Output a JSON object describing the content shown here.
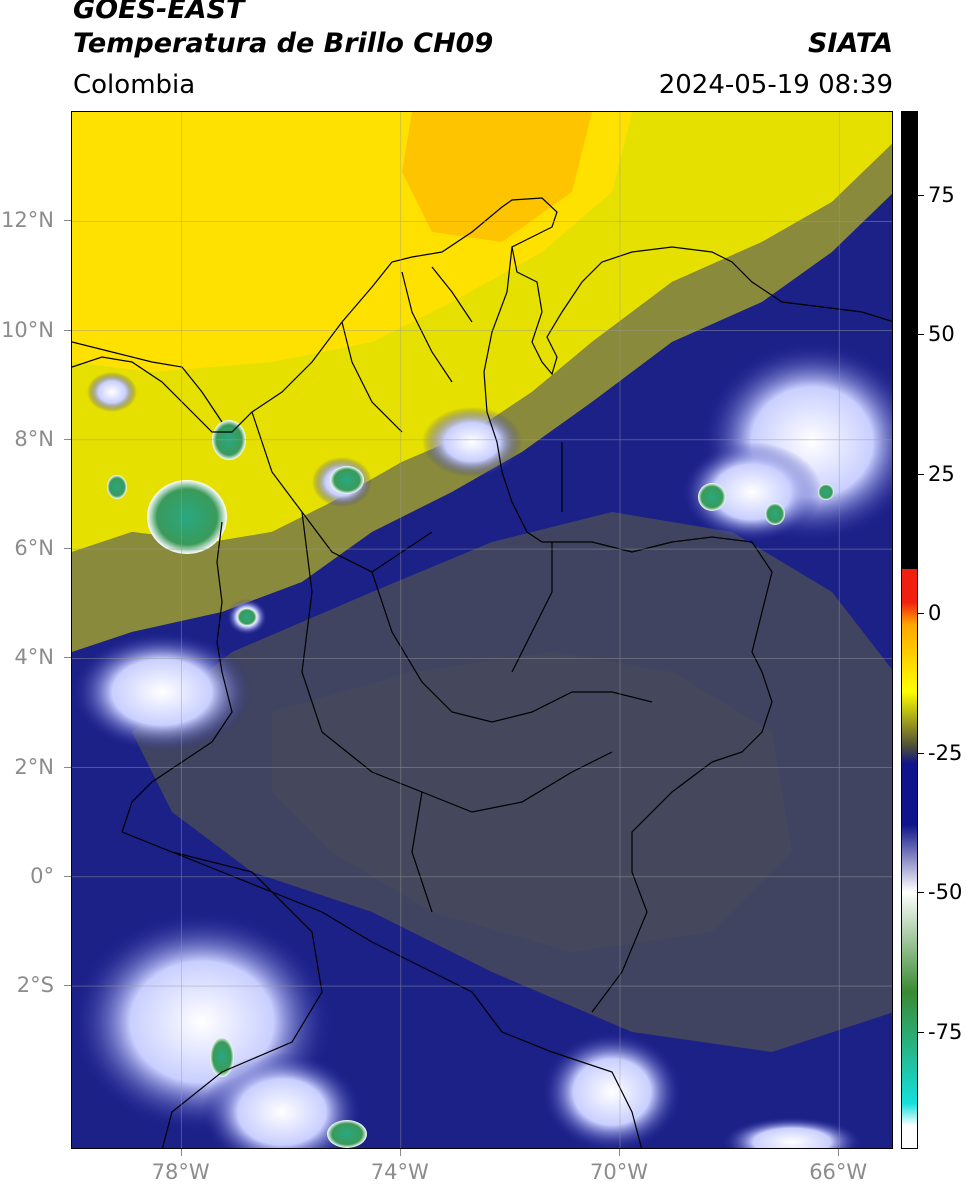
{
  "header": {
    "satellite": "GOES-EAST",
    "product": "Temperatura de Brillo CH09",
    "organization": "SIATA",
    "region": "Colombia",
    "datetime": "2024-05-19 08:39"
  },
  "map": {
    "lon_range": [
      -80,
      -65
    ],
    "lat_range": [
      -5,
      14
    ],
    "lat_ticks": [
      {
        "value": 12,
        "label": "12°N"
      },
      {
        "value": 10,
        "label": "10°N"
      },
      {
        "value": 8,
        "label": "8°N"
      },
      {
        "value": 6,
        "label": "6°N"
      },
      {
        "value": 4,
        "label": "4°N"
      },
      {
        "value": 2,
        "label": "2°N"
      },
      {
        "value": 0,
        "label": "0°"
      },
      {
        "value": -2,
        "label": "2°S"
      }
    ],
    "lon_ticks": [
      {
        "value": -78,
        "label": "78°W"
      },
      {
        "value": -74,
        "label": "74°W"
      },
      {
        "value": -70,
        "label": "70°W"
      },
      {
        "value": -66,
        "label": "66°W"
      }
    ]
  },
  "colorbar": {
    "range": [
      -96,
      90
    ],
    "tick_values": [
      75,
      50,
      25,
      0,
      -25,
      -50,
      -75
    ],
    "tick_labels": [
      "75",
      "50",
      "25",
      "0",
      "-25",
      "-50",
      "-75"
    ],
    "colors": {
      "warm_black": "#000000",
      "red": "#f02010",
      "orange": "#ffa500",
      "yellow": "#ffff00",
      "olive": "#4c4c38",
      "navy": "#10148a",
      "white": "#ffffff",
      "green": "#3a8a32",
      "cyan": "#14e0dc"
    }
  }
}
